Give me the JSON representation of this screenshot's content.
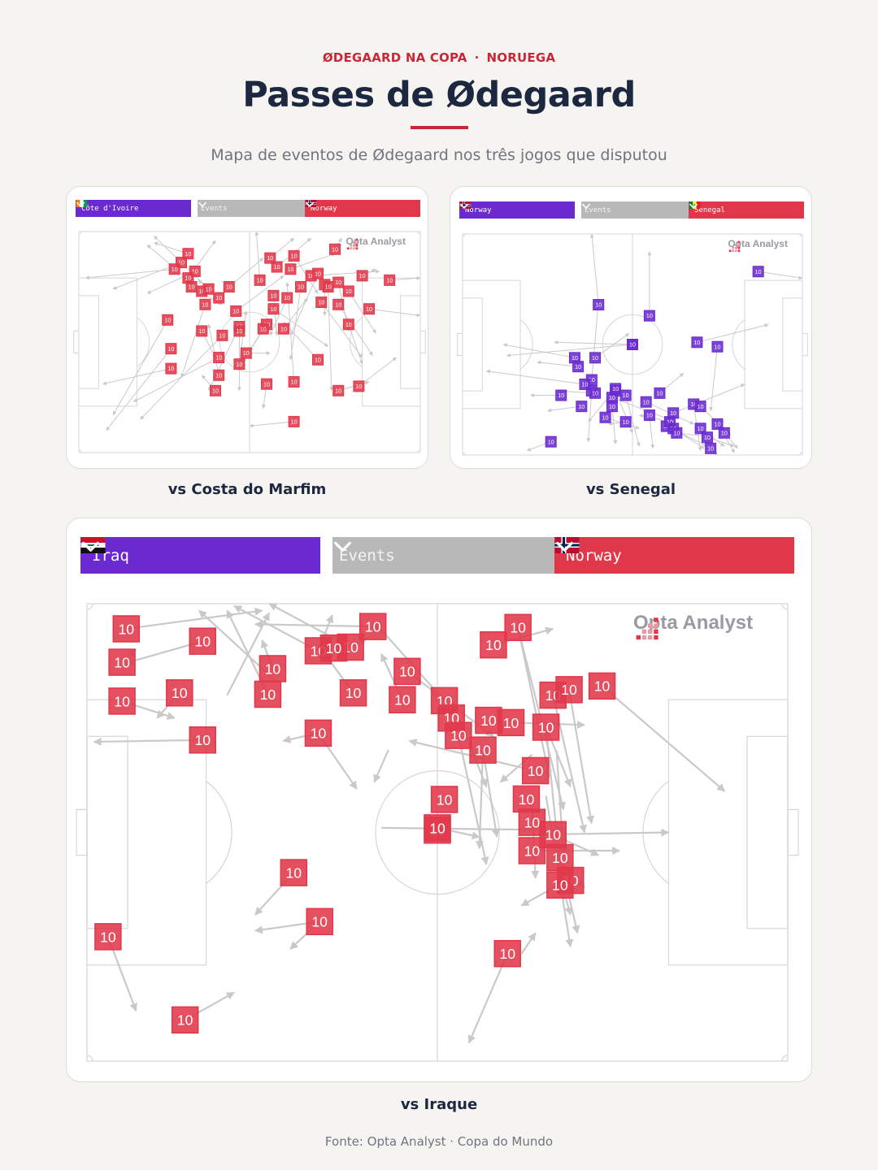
{
  "header": {
    "kicker_left": "ØDEGAARD NA COPA",
    "kicker_sep": "·",
    "kicker_right": "NORUEGA",
    "title": "Passes de Ødegaard",
    "subtitle": "Mapa de eventos de Ødegaard nos três jogos que disputou"
  },
  "colors": {
    "accent": "#c8273a",
    "team_a": "#6a2ad0",
    "team_b": "#e0384a",
    "events": "#b8b8b8",
    "marker_red": "#e0384a",
    "marker_purple": "#6a2ad0",
    "arrow": "#c8c8c8"
  },
  "brand": {
    "name": "Opta Analyst",
    "icon": "opta-dots-icon"
  },
  "footer": {
    "source": "Fonte: Opta Analyst · Copa do Mundo"
  },
  "matches": [
    {
      "id": "civ",
      "caption": "vs Costa do Marfim",
      "dropdown_left": {
        "label": "Côte d'Ivoire",
        "flag": "civ-flag-icon"
      },
      "dropdown_mid": {
        "label": "Events"
      },
      "dropdown_right": {
        "label": "Norway",
        "flag": "norway-flag-icon"
      },
      "marker_label": "10",
      "marker_color": "#e0384a",
      "passes": [
        [
          0.32,
          0.1,
          0.22,
          0.05
        ],
        [
          0.3,
          0.14,
          0.1,
          0.26
        ],
        [
          0.28,
          0.17,
          0.02,
          0.21
        ],
        [
          0.34,
          0.18,
          0.2,
          0.28
        ],
        [
          0.32,
          0.21,
          0.4,
          0.04
        ],
        [
          0.36,
          0.27,
          0.2,
          0.06
        ],
        [
          0.33,
          0.25,
          0.42,
          0.33
        ],
        [
          0.38,
          0.26,
          0.22,
          0.02
        ],
        [
          0.37,
          0.33,
          0.3,
          0.66
        ],
        [
          0.41,
          0.3,
          0.35,
          0.22
        ],
        [
          0.44,
          0.25,
          0.54,
          0.12
        ],
        [
          0.46,
          0.36,
          0.6,
          0.2
        ],
        [
          0.47,
          0.43,
          0.38,
          0.72
        ],
        [
          0.42,
          0.47,
          0.18,
          0.85
        ],
        [
          0.41,
          0.57,
          0.16,
          0.77
        ],
        [
          0.26,
          0.4,
          0.1,
          0.83
        ],
        [
          0.27,
          0.62,
          0.07,
          0.69
        ],
        [
          0.27,
          0.53,
          0.08,
          0.9
        ],
        [
          0.36,
          0.45,
          0.4,
          0.57
        ],
        [
          0.41,
          0.65,
          0.38,
          0.42
        ],
        [
          0.56,
          0.12,
          0.63,
          0.03
        ],
        [
          0.53,
          0.22,
          0.52,
          0.0
        ],
        [
          0.58,
          0.16,
          0.68,
          0.03
        ],
        [
          0.57,
          0.29,
          0.58,
          0.47
        ],
        [
          0.57,
          0.35,
          0.73,
          0.52
        ],
        [
          0.55,
          0.42,
          0.48,
          0.59
        ],
        [
          0.54,
          0.44,
          0.5,
          0.54
        ],
        [
          0.49,
          0.55,
          0.56,
          0.55
        ],
        [
          0.47,
          0.6,
          0.49,
          0.36
        ],
        [
          0.47,
          0.45,
          0.47,
          0.72
        ],
        [
          0.6,
          0.44,
          0.67,
          0.3
        ],
        [
          0.61,
          0.3,
          0.56,
          0.47
        ],
        [
          0.62,
          0.17,
          0.75,
          0.1
        ],
        [
          0.63,
          0.11,
          0.7,
          0.28
        ],
        [
          0.65,
          0.25,
          0.62,
          0.58
        ],
        [
          0.68,
          0.2,
          0.88,
          0.18
        ],
        [
          0.7,
          0.19,
          0.62,
          0.47
        ],
        [
          0.71,
          0.32,
          0.83,
          0.57
        ],
        [
          0.72,
          0.24,
          0.72,
          0.38
        ],
        [
          0.73,
          0.25,
          0.74,
          0.72
        ],
        [
          0.76,
          0.23,
          0.79,
          0.45
        ],
        [
          0.79,
          0.27,
          0.87,
          0.46
        ],
        [
          0.76,
          0.33,
          0.86,
          0.56
        ],
        [
          0.75,
          0.08,
          0.77,
          0.03
        ],
        [
          0.82,
          0.7,
          0.93,
          0.57
        ],
        [
          0.79,
          0.42,
          0.83,
          0.6
        ],
        [
          0.7,
          0.58,
          0.6,
          0.41
        ],
        [
          0.63,
          0.68,
          0.61,
          0.23
        ],
        [
          0.63,
          0.86,
          0.5,
          0.88
        ],
        [
          0.55,
          0.69,
          0.54,
          0.8
        ],
        [
          0.4,
          0.72,
          0.36,
          0.65
        ],
        [
          0.76,
          0.72,
          0.85,
          0.68
        ],
        [
          0.91,
          0.22,
          1.0,
          0.21
        ],
        [
          0.85,
          0.35,
          1.0,
          0.38
        ],
        [
          0.83,
          0.2,
          0.87,
          0.17
        ]
      ]
    },
    {
      "id": "sen",
      "caption": "vs Senegal",
      "dropdown_left": {
        "label": "Norway",
        "flag": "norway-flag-icon"
      },
      "dropdown_mid": {
        "label": "Events"
      },
      "dropdown_right": {
        "label": "Senegal",
        "flag": "senegal-flag-icon"
      },
      "marker_label": "10",
      "marker_color": "#6a2ad0",
      "passes": [
        [
          0.4,
          0.32,
          0.38,
          0.0
        ],
        [
          0.55,
          0.37,
          0.55,
          0.08
        ],
        [
          0.33,
          0.56,
          0.12,
          0.5
        ],
        [
          0.34,
          0.6,
          0.22,
          0.58
        ],
        [
          0.39,
          0.56,
          0.49,
          0.45
        ],
        [
          0.5,
          0.5,
          0.13,
          0.55
        ],
        [
          0.5,
          0.5,
          0.27,
          0.49
        ],
        [
          0.38,
          0.66,
          0.4,
          0.3
        ],
        [
          0.38,
          0.71,
          0.37,
          0.94
        ],
        [
          0.39,
          0.72,
          0.28,
          0.71
        ],
        [
          0.45,
          0.71,
          0.5,
          0.9
        ],
        [
          0.45,
          0.7,
          0.37,
          0.85
        ],
        [
          0.42,
          0.83,
          0.52,
          0.88
        ],
        [
          0.44,
          0.78,
          0.45,
          0.95
        ],
        [
          0.44,
          0.74,
          0.61,
          0.84
        ],
        [
          0.48,
          0.73,
          0.52,
          0.96
        ],
        [
          0.48,
          0.85,
          0.43,
          0.86
        ],
        [
          0.36,
          0.68,
          0.07,
          0.62
        ],
        [
          0.29,
          0.73,
          0.2,
          0.73
        ],
        [
          0.26,
          0.94,
          0.19,
          0.98
        ],
        [
          0.54,
          0.76,
          0.68,
          0.86
        ],
        [
          0.58,
          0.72,
          0.65,
          0.63
        ],
        [
          0.6,
          0.87,
          0.72,
          0.96
        ],
        [
          0.61,
          0.85,
          0.52,
          0.82
        ],
        [
          0.62,
          0.88,
          0.71,
          0.97
        ],
        [
          0.63,
          0.9,
          0.74,
          0.92
        ],
        [
          0.68,
          0.77,
          0.7,
          0.98
        ],
        [
          0.7,
          0.88,
          0.77,
          0.96
        ],
        [
          0.7,
          0.78,
          0.79,
          0.91
        ],
        [
          0.72,
          0.92,
          0.8,
          0.96
        ],
        [
          0.75,
          0.86,
          0.8,
          0.99
        ],
        [
          0.77,
          0.9,
          0.81,
          0.97
        ],
        [
          0.73,
          0.97,
          0.75,
          1.0
        ],
        [
          0.69,
          0.49,
          0.9,
          0.41
        ],
        [
          0.75,
          0.51,
          0.73,
          0.8
        ],
        [
          0.87,
          0.17,
          1.0,
          0.2
        ],
        [
          0.62,
          0.81,
          0.83,
          0.68
        ],
        [
          0.55,
          0.82,
          0.56,
          0.97
        ],
        [
          0.35,
          0.78,
          0.25,
          0.8
        ]
      ]
    },
    {
      "id": "irq",
      "caption": "vs Iraque",
      "dropdown_left": {
        "label": "Iraq",
        "flag": "iraq-flag-icon"
      },
      "dropdown_mid": {
        "label": "Events"
      },
      "dropdown_right": {
        "label": "Norway",
        "flag": "norway-flag-icon"
      },
      "marker_label": "10",
      "marker_color": "#e0384a",
      "passes": [
        [
          0.056,
          0.055,
          0.25,
          0.015
        ],
        [
          0.165,
          0.082,
          0.055,
          0.13
        ],
        [
          0.05,
          0.128,
          0.07,
          0.1
        ],
        [
          0.05,
          0.213,
          0.125,
          0.25
        ],
        [
          0.132,
          0.195,
          0.1,
          0.25
        ],
        [
          0.165,
          0.298,
          0.01,
          0.302
        ],
        [
          0.265,
          0.142,
          0.25,
          0.08
        ],
        [
          0.258,
          0.198,
          0.2,
          0.015
        ],
        [
          0.33,
          0.103,
          0.21,
          0.005
        ],
        [
          0.33,
          0.103,
          0.35,
          0.025
        ],
        [
          0.376,
          0.095,
          0.4,
          0.075
        ],
        [
          0.376,
          0.095,
          0.26,
          0.0
        ],
        [
          0.408,
          0.05,
          0.24,
          0.045
        ],
        [
          0.38,
          0.195,
          0.33,
          0.09
        ],
        [
          0.33,
          0.283,
          0.28,
          0.3
        ],
        [
          0.33,
          0.283,
          0.385,
          0.405
        ],
        [
          0.45,
          0.21,
          0.42,
          0.11
        ],
        [
          0.457,
          0.148,
          0.58,
          0.29
        ],
        [
          0.43,
          0.32,
          0.41,
          0.39
        ],
        [
          0.51,
          0.212,
          0.41,
          0.04
        ],
        [
          0.52,
          0.25,
          0.49,
          0.185
        ],
        [
          0.52,
          0.21,
          0.57,
          0.4
        ],
        [
          0.53,
          0.288,
          0.57,
          0.57
        ],
        [
          0.565,
          0.32,
          0.56,
          0.535
        ],
        [
          0.565,
          0.32,
          0.585,
          0.51
        ],
        [
          0.58,
          0.09,
          0.665,
          0.055
        ],
        [
          0.605,
          0.26,
          0.71,
          0.265
        ],
        [
          0.615,
          0.052,
          0.66,
          0.38
        ],
        [
          0.615,
          0.052,
          0.68,
          0.45
        ],
        [
          0.655,
          0.27,
          0.69,
          0.4
        ],
        [
          0.625,
          0.36,
          0.46,
          0.3
        ],
        [
          0.635,
          0.42,
          0.64,
          0.6
        ],
        [
          0.665,
          0.2,
          0.71,
          0.5
        ],
        [
          0.655,
          0.27,
          0.68,
          0.65
        ],
        [
          0.688,
          0.188,
          0.72,
          0.48
        ],
        [
          0.67,
          0.32,
          0.68,
          0.55
        ],
        [
          0.735,
          0.18,
          0.91,
          0.41
        ],
        [
          0.655,
          0.42,
          0.69,
          0.75
        ],
        [
          0.665,
          0.505,
          0.73,
          0.55
        ],
        [
          0.635,
          0.505,
          0.83,
          0.5
        ],
        [
          0.635,
          0.54,
          0.76,
          0.54
        ],
        [
          0.675,
          0.555,
          0.7,
          0.72
        ],
        [
          0.675,
          0.6,
          0.69,
          0.68
        ],
        [
          0.68,
          0.57,
          0.71,
          0.62
        ],
        [
          0.69,
          0.6,
          0.62,
          0.66
        ],
        [
          0.6,
          0.765,
          0.545,
          0.96
        ],
        [
          0.62,
          0.765,
          0.64,
          0.72
        ],
        [
          0.635,
          0.33,
          0.59,
          0.39
        ],
        [
          0.42,
          0.49,
          0.68,
          0.495
        ],
        [
          0.5,
          0.49,
          0.56,
          0.51
        ],
        [
          0.295,
          0.588,
          0.24,
          0.68
        ],
        [
          0.332,
          0.695,
          0.24,
          0.715
        ],
        [
          0.332,
          0.695,
          0.29,
          0.755
        ],
        [
          0.03,
          0.728,
          0.07,
          0.89
        ],
        [
          0.14,
          0.91,
          0.21,
          0.85
        ],
        [
          0.27,
          0.17,
          0.16,
          0.015
        ],
        [
          0.2,
          0.2,
          0.26,
          0.02
        ]
      ],
      "markers": [
        [
          0.056,
          0.055
        ],
        [
          0.165,
          0.082
        ],
        [
          0.05,
          0.128
        ],
        [
          0.05,
          0.213
        ],
        [
          0.132,
          0.195
        ],
        [
          0.165,
          0.298
        ],
        [
          0.265,
          0.142
        ],
        [
          0.258,
          0.198
        ],
        [
          0.33,
          0.103
        ],
        [
          0.376,
          0.095
        ],
        [
          0.408,
          0.05
        ],
        [
          0.38,
          0.195
        ],
        [
          0.33,
          0.283
        ],
        [
          0.45,
          0.21
        ],
        [
          0.457,
          0.148
        ],
        [
          0.51,
          0.212
        ],
        [
          0.52,
          0.25
        ],
        [
          0.53,
          0.288
        ],
        [
          0.565,
          0.32
        ],
        [
          0.58,
          0.09
        ],
        [
          0.605,
          0.26
        ],
        [
          0.615,
          0.052
        ],
        [
          0.655,
          0.27
        ],
        [
          0.665,
          0.2
        ],
        [
          0.688,
          0.188
        ],
        [
          0.735,
          0.18
        ],
        [
          0.51,
          0.428
        ],
        [
          0.64,
          0.365
        ],
        [
          0.627,
          0.427
        ],
        [
          0.635,
          0.478
        ],
        [
          0.665,
          0.505
        ],
        [
          0.635,
          0.54
        ],
        [
          0.675,
          0.555
        ],
        [
          0.69,
          0.605
        ],
        [
          0.675,
          0.615
        ],
        [
          0.6,
          0.765
        ],
        [
          0.5,
          0.495
        ],
        [
          0.5,
          0.49
        ],
        [
          0.295,
          0.588
        ],
        [
          0.332,
          0.695
        ],
        [
          0.03,
          0.728
        ],
        [
          0.14,
          0.91
        ],
        [
          0.573,
          0.255
        ],
        [
          0.352,
          0.097
        ]
      ]
    }
  ]
}
